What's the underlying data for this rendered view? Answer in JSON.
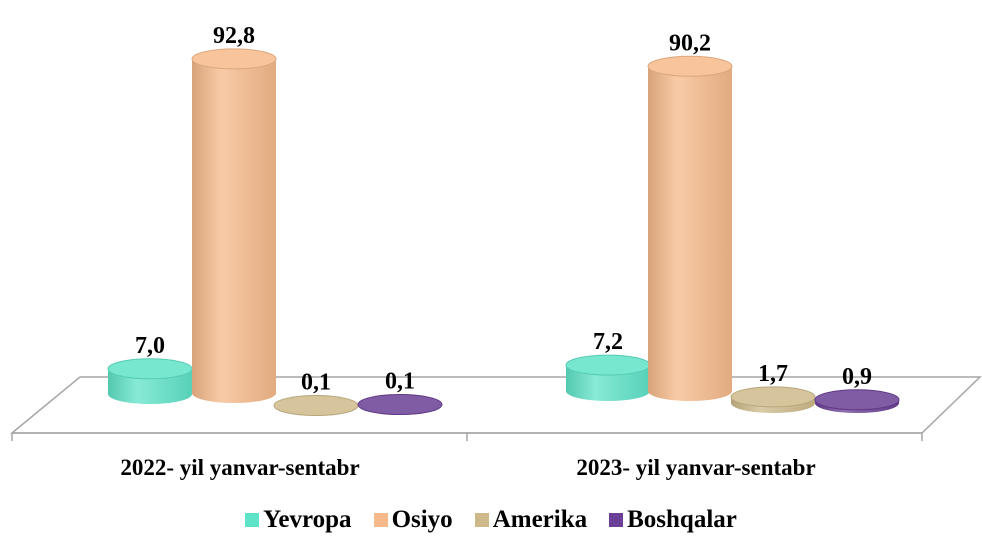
{
  "chart_data": {
    "type": "bar",
    "title": "",
    "xlabel": "",
    "ylabel": "",
    "categories": [
      "2022- yil yanvar-sentabr",
      "2023- yil yanvar-sentabr"
    ],
    "series": [
      {
        "name": "Yevropa",
        "values": [
          7.0,
          7.2
        ],
        "labels": [
          "7,0",
          "7,2"
        ],
        "color": "#5fe3c8"
      },
      {
        "name": "Osiyo",
        "values": [
          92.8,
          90.2
        ],
        "labels": [
          "92,8",
          "90,2"
        ],
        "color": "#f6b98a"
      },
      {
        "name": "Amerika",
        "values": [
          0.1,
          1.7
        ],
        "labels": [
          "0,1",
          "1,7"
        ],
        "color": "#cdb98a"
      },
      {
        "name": "Boshqalar",
        "values": [
          0.1,
          0.9
        ],
        "labels": [
          "0,1",
          "0,9"
        ],
        "color": "#6a3f95"
      }
    ],
    "ylim": [
      0,
      100
    ],
    "grid": false,
    "legend_position": "bottom"
  }
}
